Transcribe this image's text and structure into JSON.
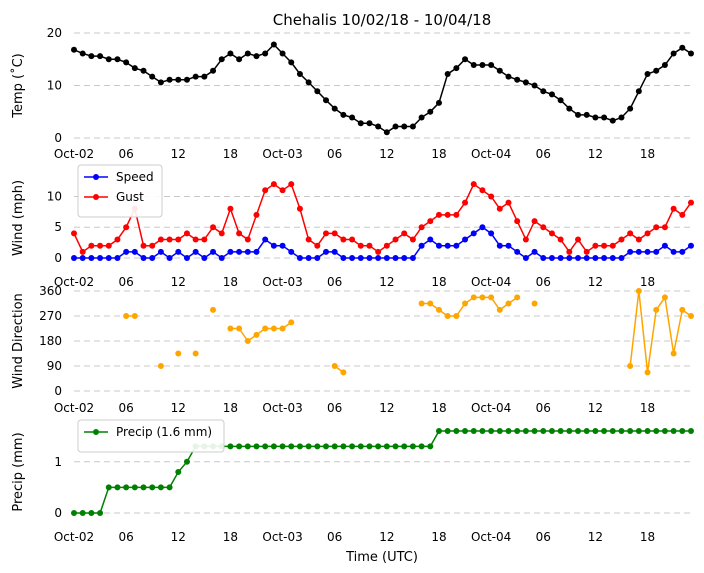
{
  "chart_data": [
    {
      "type": "line",
      "title": "Chehalis 10/02/18 - 10/04/18",
      "ylabel": "Temp (˚C)",
      "ylim": [
        0,
        20
      ],
      "yticks": [
        0,
        10,
        20
      ],
      "x_hours": [
        0,
        1,
        2,
        3,
        4,
        5,
        6,
        7,
        8,
        9,
        10,
        11,
        12,
        13,
        14,
        15,
        16,
        17,
        18,
        19,
        20,
        21,
        22,
        23,
        24,
        25,
        26,
        27,
        28,
        29,
        30,
        31,
        32,
        33,
        34,
        35,
        36,
        37,
        38,
        39,
        40,
        41,
        42,
        43,
        44,
        45,
        46,
        47,
        48,
        49,
        50,
        51,
        52,
        53,
        54,
        55,
        56,
        57,
        58,
        59,
        60,
        61,
        62,
        63,
        64,
        65,
        66,
        67,
        68,
        69,
        70,
        71
      ],
      "xtick_labels": [
        "Oct-02",
        "06",
        "12",
        "18",
        "Oct-03",
        "06",
        "12",
        "18",
        "Oct-04",
        "06",
        "12",
        "18"
      ],
      "grid": true,
      "series": [
        {
          "color": "#000000",
          "values": [
            16.8,
            16.1,
            15.6,
            15.6,
            15.0,
            15.0,
            14.4,
            13.3,
            12.8,
            11.7,
            10.6,
            11.1,
            11.1,
            11.1,
            11.7,
            11.7,
            12.8,
            15.0,
            16.1,
            15.0,
            16.1,
            15.6,
            16.1,
            17.8,
            16.1,
            14.4,
            12.2,
            10.6,
            8.9,
            7.2,
            5.6,
            4.4,
            3.9,
            2.8,
            2.8,
            2.2,
            1.1,
            2.2,
            2.2,
            2.2,
            3.9,
            5.0,
            6.7,
            12.2,
            13.3,
            15.0,
            13.9,
            13.9,
            13.9,
            12.8,
            11.7,
            11.1,
            10.6,
            10.0,
            8.9,
            8.3,
            7.2,
            5.6,
            4.4,
            4.4,
            3.9,
            3.9,
            3.3,
            3.9,
            5.6,
            8.9,
            12.2,
            12.8,
            13.9,
            16.1,
            17.2,
            16.1
          ]
        }
      ]
    },
    {
      "type": "line",
      "ylabel": "Wind (mph)",
      "ylim": [
        0,
        13
      ],
      "yticks": [
        0,
        5,
        10
      ],
      "xtick_labels": [
        "Oct-02",
        "06",
        "12",
        "18",
        "Oct-03",
        "06",
        "12",
        "18",
        "Oct-04",
        "06",
        "12",
        "18"
      ],
      "legend": "top-left",
      "grid": true,
      "series": [
        {
          "name": "Speed",
          "color": "#0000ff",
          "values": [
            0,
            0,
            0,
            0,
            0,
            0,
            1,
            1,
            0,
            0,
            1,
            0,
            1,
            0,
            1,
            0,
            1,
            0,
            1,
            1,
            1,
            1,
            3,
            2,
            2,
            1,
            0,
            0,
            0,
            1,
            1,
            0,
            0,
            0,
            0,
            0,
            0,
            0,
            0,
            0,
            2,
            3,
            2,
            2,
            2,
            3,
            4,
            5,
            4,
            2,
            2,
            1,
            0,
            1,
            0,
            0,
            0,
            0,
            0,
            0,
            0,
            0,
            0,
            0,
            1,
            1,
            1,
            1,
            2,
            1,
            1,
            2
          ]
        },
        {
          "name": "Gust",
          "color": "#ff0000",
          "values": [
            4,
            1,
            2,
            2,
            2,
            3,
            5,
            8,
            2,
            2,
            3,
            3,
            3,
            4,
            3,
            3,
            5,
            4,
            8,
            4,
            3,
            7,
            11,
            12,
            11,
            12,
            8,
            3,
            2,
            4,
            4,
            3,
            3,
            2,
            2,
            1,
            2,
            3,
            4,
            3,
            5,
            6,
            7,
            7,
            7,
            9,
            12,
            11,
            10,
            8,
            9,
            6,
            3,
            6,
            5,
            4,
            3,
            1,
            3,
            1,
            2,
            2,
            2,
            3,
            4,
            3,
            4,
            5,
            5,
            8,
            7,
            9
          ]
        }
      ]
    },
    {
      "type": "line",
      "ylabel": "Wind Direction",
      "ylim": [
        0,
        360
      ],
      "yticks": [
        0,
        90,
        180,
        270,
        360
      ],
      "xtick_labels": [
        "Oct-02",
        "06",
        "12",
        "18",
        "Oct-03",
        "06",
        "12",
        "18",
        "Oct-04",
        "06",
        "12",
        "18"
      ],
      "grid": true,
      "series": [
        {
          "color": "#ffa500",
          "values": [
            null,
            null,
            null,
            null,
            null,
            null,
            270,
            270,
            null,
            null,
            90,
            null,
            135,
            null,
            135,
            null,
            292,
            null,
            225,
            225,
            180,
            202,
            225,
            225,
            225,
            247,
            null,
            null,
            null,
            null,
            90,
            67,
            null,
            null,
            null,
            null,
            null,
            null,
            null,
            null,
            315,
            315,
            292,
            270,
            270,
            315,
            337,
            337,
            337,
            292,
            315,
            337,
            null,
            315,
            null,
            null,
            null,
            null,
            null,
            null,
            null,
            null,
            null,
            null,
            90,
            360,
            67,
            292,
            337,
            135,
            292,
            270
          ]
        }
      ]
    },
    {
      "type": "line",
      "ylabel": "Precip (mm)",
      "xlabel": "Time (UTC)",
      "ylim": [
        0,
        1.6
      ],
      "yticks": [
        0,
        1
      ],
      "xtick_labels": [
        "Oct-02",
        "06",
        "12",
        "18",
        "Oct-03",
        "06",
        "12",
        "18",
        "Oct-04",
        "06",
        "12",
        "18"
      ],
      "legend": "top-left",
      "grid": true,
      "series": [
        {
          "name": "Precip (1.6 mm)",
          "color": "#008000",
          "values": [
            0,
            0,
            0,
            0,
            0.5,
            0.5,
            0.5,
            0.5,
            0.5,
            0.5,
            0.5,
            0.5,
            0.8,
            1.0,
            1.3,
            1.3,
            1.3,
            1.3,
            1.3,
            1.3,
            1.3,
            1.3,
            1.3,
            1.3,
            1.3,
            1.3,
            1.3,
            1.3,
            1.3,
            1.3,
            1.3,
            1.3,
            1.3,
            1.3,
            1.3,
            1.3,
            1.3,
            1.3,
            1.3,
            1.3,
            1.3,
            1.3,
            1.6,
            1.6,
            1.6,
            1.6,
            1.6,
            1.6,
            1.6,
            1.6,
            1.6,
            1.6,
            1.6,
            1.6,
            1.6,
            1.6,
            1.6,
            1.6,
            1.6,
            1.6,
            1.6,
            1.6,
            1.6,
            1.6,
            1.6,
            1.6,
            1.6,
            1.6,
            1.6,
            1.6,
            1.6,
            1.6
          ]
        }
      ]
    }
  ]
}
